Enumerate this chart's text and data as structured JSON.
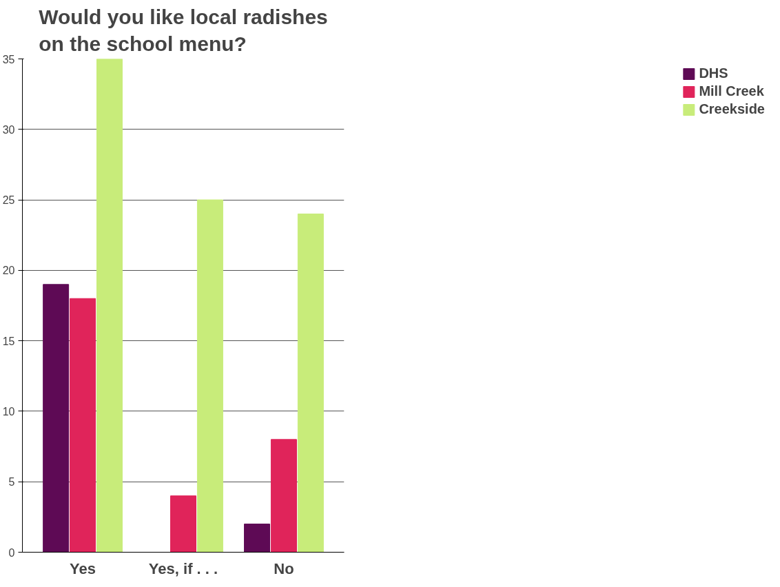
{
  "chart_data": {
    "type": "bar",
    "title": "Would you like local radishes\non the school menu?",
    "categories": [
      "Yes",
      "Yes, if . . .",
      "No"
    ],
    "series": [
      {
        "name": "DHS",
        "color": "#5e0a55",
        "values": [
          19,
          0,
          2
        ]
      },
      {
        "name": "Mill Creek",
        "color": "#e0245a",
        "values": [
          18,
          4,
          8
        ]
      },
      {
        "name": "Creekside",
        "color": "#c8ec7a",
        "values": [
          35,
          25,
          24
        ]
      }
    ],
    "ylim": [
      0,
      35
    ],
    "yticks": [
      0,
      5,
      10,
      15,
      20,
      25,
      30,
      35
    ],
    "grid": "y",
    "legend": "right"
  }
}
